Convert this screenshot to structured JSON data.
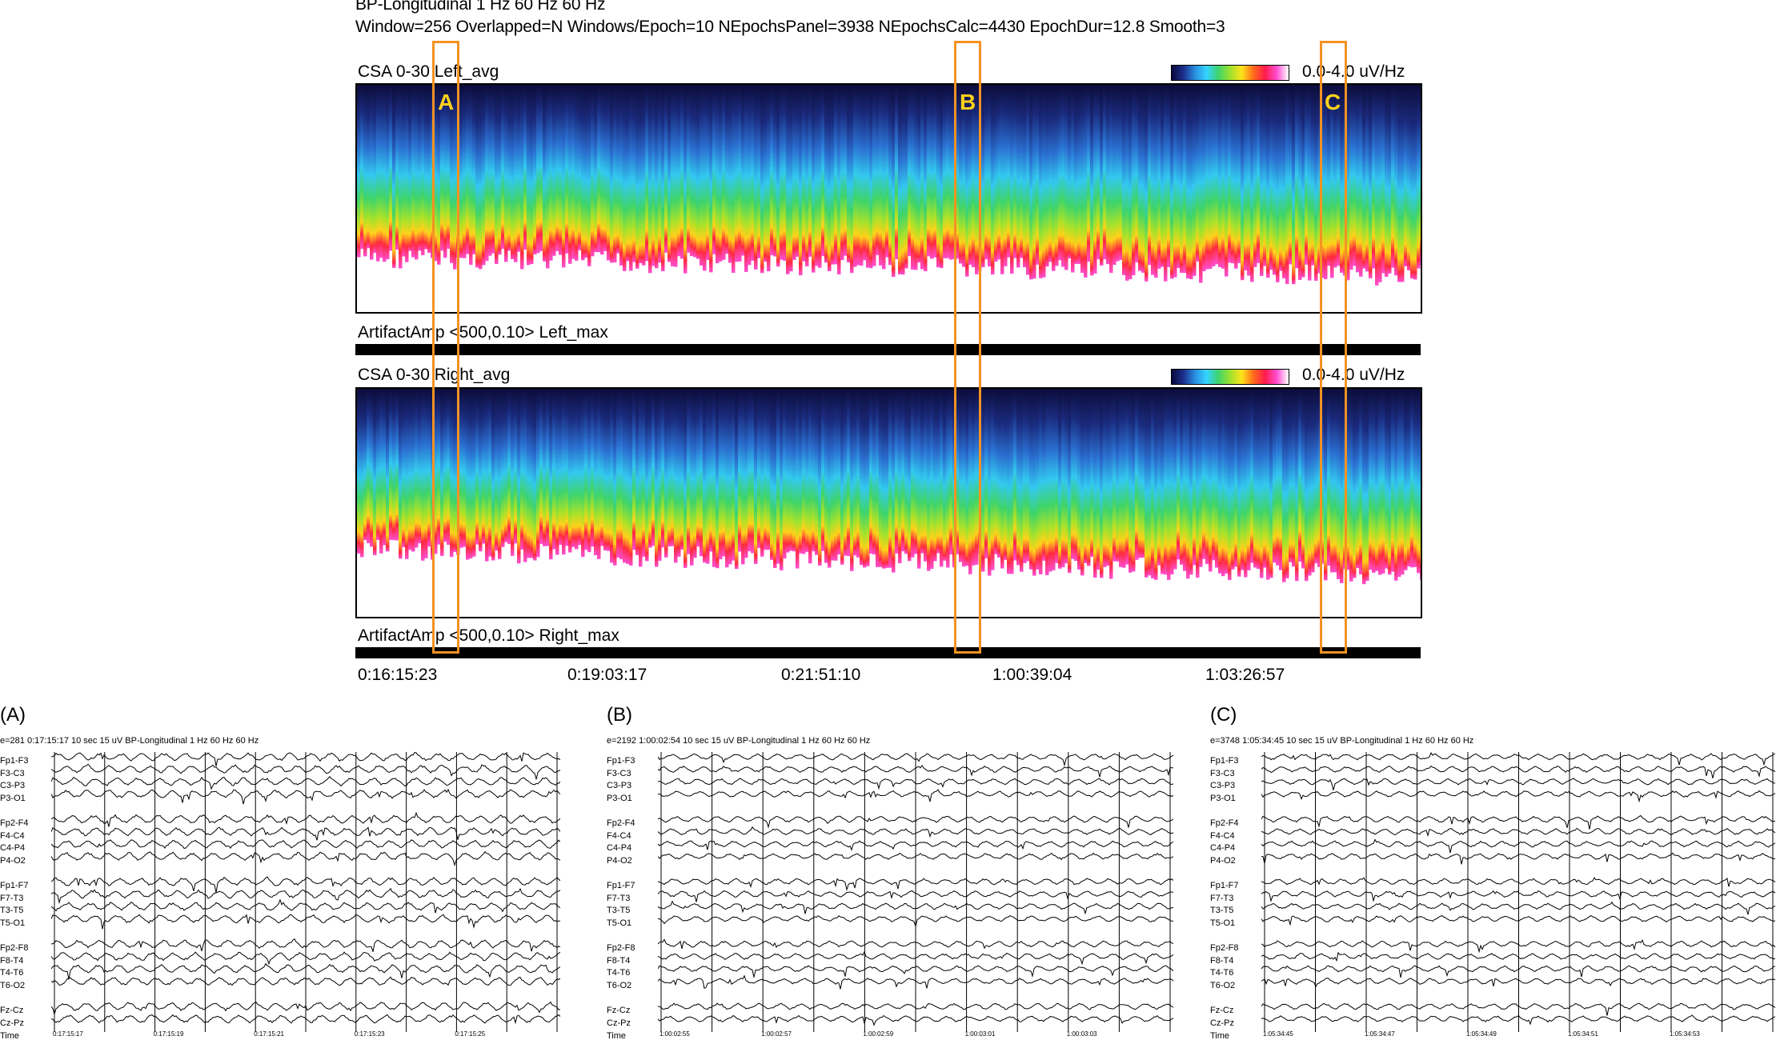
{
  "header": {
    "line1": "BP-Longitudinal  1 Hz  60 Hz  60 Hz",
    "line2": "Window=256 Overlapped=N Windows/Epoch=10 NEpochsPanel=3938 NEpochsCalc=4430 EpochDur=12.8 Smooth=3"
  },
  "panels": {
    "left_title": "CSA 0-30 Left_avg",
    "left_legend": "0.0-4.0 uV/Hz",
    "left_artifact": "ArtifactAmp <500,0.10> Left_max",
    "right_title": "CSA 0-30 Right_avg",
    "right_legend": "0.0-4.0 uV/Hz",
    "right_artifact": "ArtifactAmp <500,0.10> Right_max"
  },
  "time_axis": [
    "0:16:15:23",
    "0:19:03:17",
    "0:21:51:10",
    "1:00:39:04",
    "1:03:26:57"
  ],
  "markers": [
    "A",
    "B",
    "C"
  ],
  "colors": {
    "marker_box": "#f39223",
    "marker_label": "#ffd21a"
  },
  "eeg": {
    "channels": [
      "Fp1-F3",
      "F3-C3",
      "C3-P3",
      "P3-O1",
      "Fp2-F4",
      "F4-C4",
      "C4-P4",
      "P4-O2",
      "Fp1-F7",
      "F7-T3",
      "T3-T5",
      "T5-O1",
      "Fp2-F8",
      "F8-T4",
      "T4-T6",
      "T6-O2",
      "Fz-Cz",
      "Cz-Pz",
      "Time"
    ],
    "panels": [
      {
        "letter": "(A)",
        "info": "e=281  0:17:15:17  10 sec  15 uV  BP-Longitudinal  1 Hz  60 Hz  60 Hz",
        "times": [
          "0:17:15:17",
          "0:17:15:19",
          "0:17:15:21",
          "0:17:15:23",
          "0:17:15:25"
        ]
      },
      {
        "letter": "(B)",
        "info": "e=2192  1:00:02:54  10 sec  15 uV  BP-Longitudinal  1 Hz  60 Hz  60 Hz",
        "times": [
          "1:00:02:55",
          "1:00:02:57",
          "1:00:02:59",
          "1:00:03:01",
          "1:00:03:03"
        ]
      },
      {
        "letter": "(C)",
        "info": "e=3748  1:05:34:45  10 sec  15 uV  BP-Longitudinal  1 Hz  60 Hz  60 Hz",
        "times": [
          "1:05:34:45",
          "1:05:34:47",
          "1:05:34:49",
          "1:05:34:51",
          "1:05:34:53"
        ]
      }
    ]
  }
}
